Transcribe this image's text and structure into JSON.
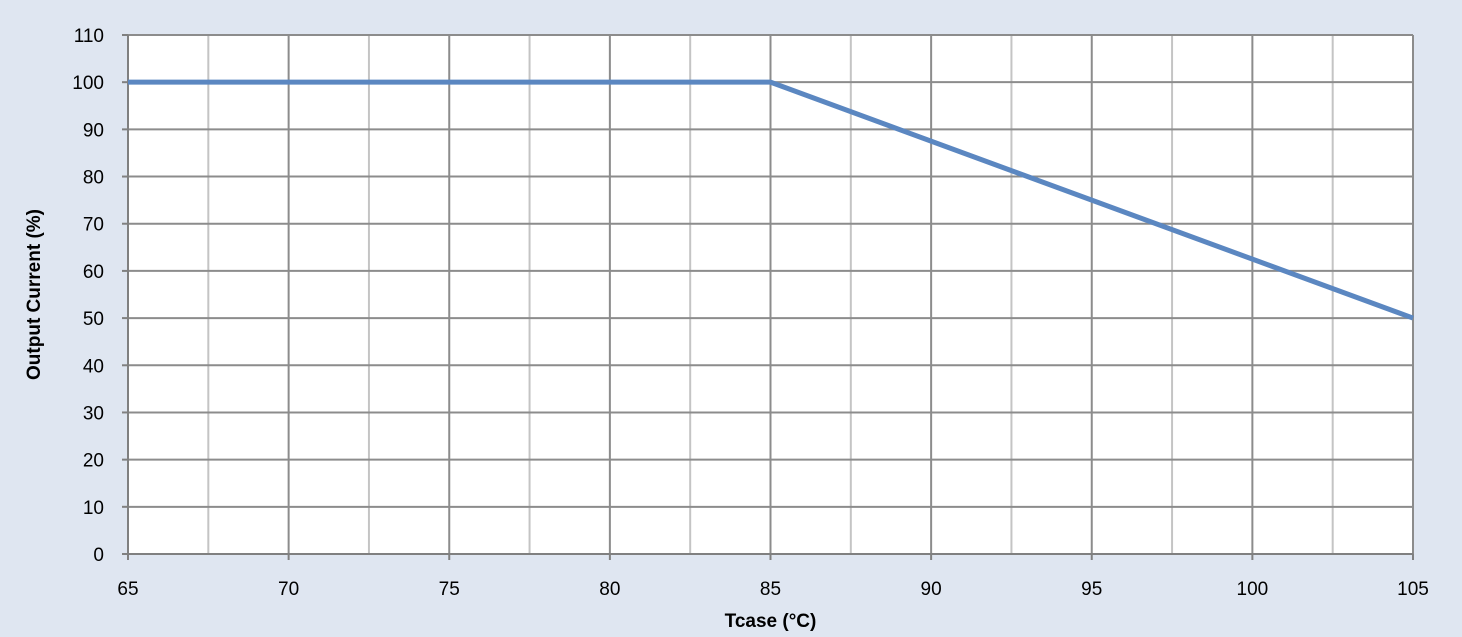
{
  "colors": {
    "page_background": "#dfe6f1",
    "plot_background": "#ffffff",
    "major_grid": "#8c8c8c",
    "minor_grid": "#c4c4c4",
    "axis": "#808080",
    "series": "#5b87c1"
  },
  "chart_data": {
    "type": "line",
    "title": "",
    "xlabel": "Tcase (°C)",
    "ylabel": "Output Current (%)",
    "xlim": [
      65,
      105
    ],
    "ylim": [
      0,
      110
    ],
    "x_ticks": [
      65,
      70,
      75,
      80,
      85,
      90,
      95,
      100,
      105
    ],
    "y_ticks": [
      0,
      10,
      20,
      30,
      40,
      50,
      60,
      70,
      80,
      90,
      100,
      110
    ],
    "x_tick_labels": [
      "65",
      "70",
      "75",
      "80",
      "85",
      "90",
      "95",
      "100",
      "105"
    ],
    "y_tick_labels": [
      "0",
      "10",
      "20",
      "30",
      "40",
      "50",
      "60",
      "70",
      "80",
      "90",
      "100",
      "110"
    ],
    "x_minor_step": 2.5,
    "grid": true,
    "legend": "none",
    "series": [
      {
        "x": [
          65,
          85,
          105
        ],
        "y": [
          100,
          100,
          50
        ]
      }
    ]
  }
}
